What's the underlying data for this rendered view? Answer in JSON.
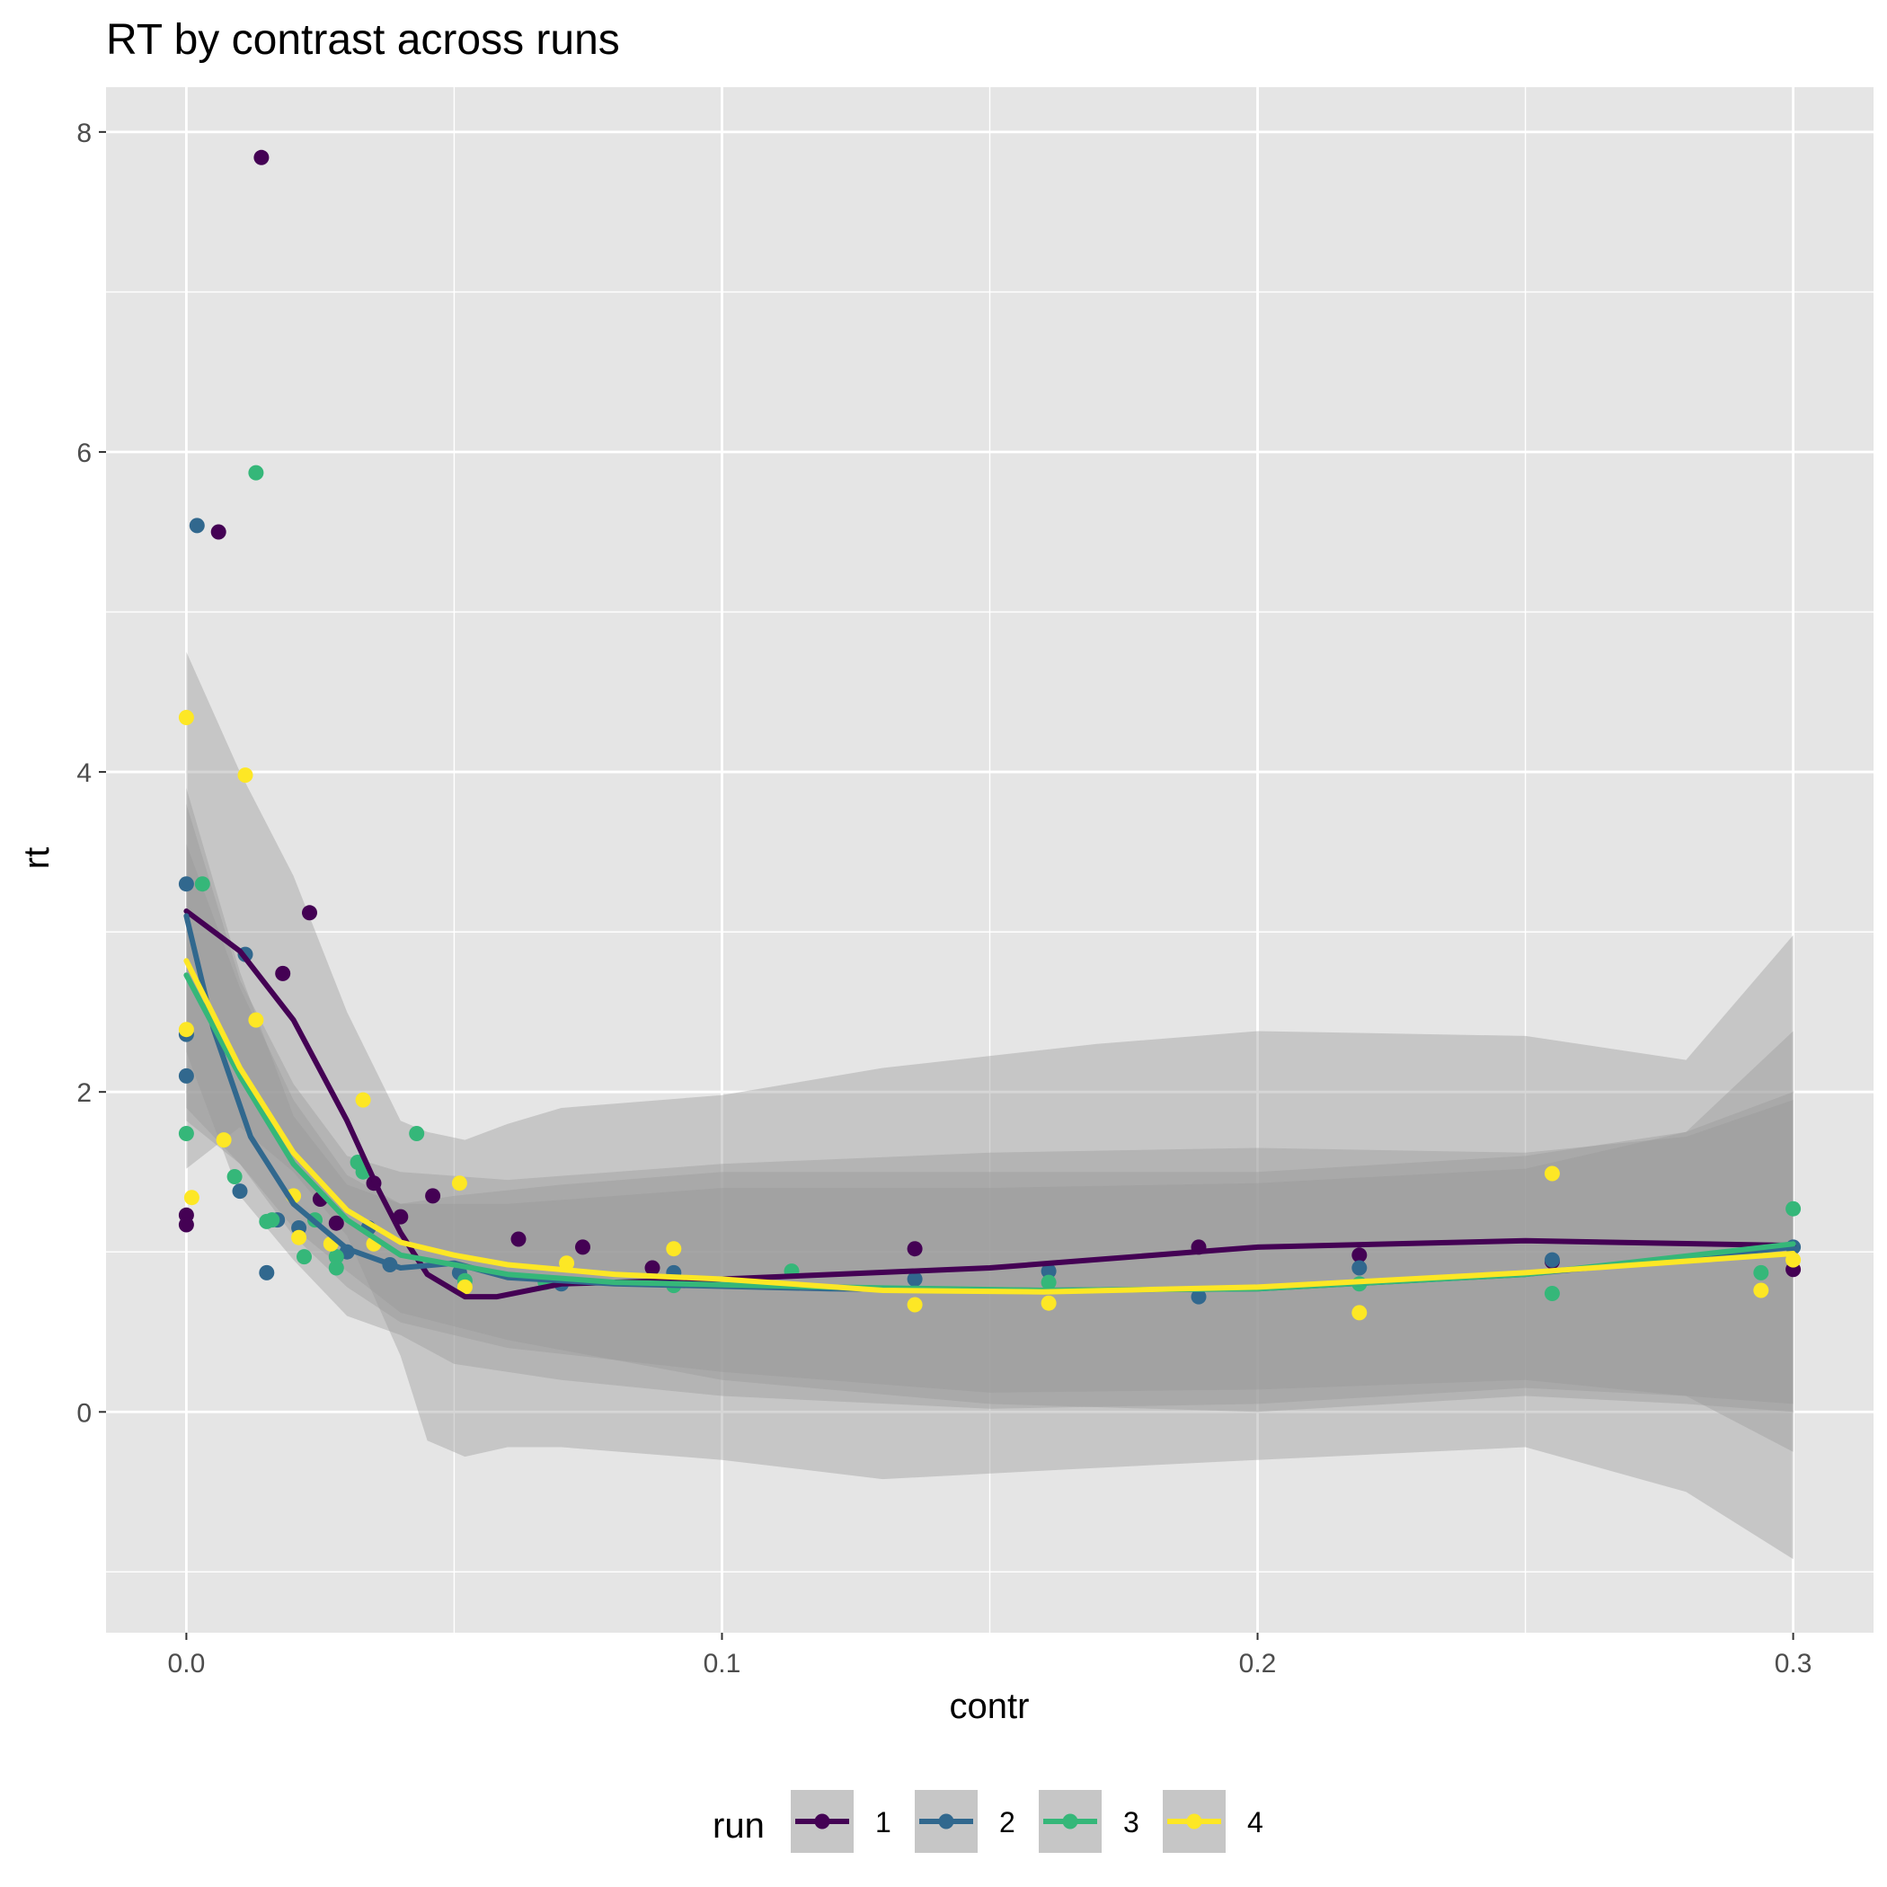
{
  "chart_data": {
    "type": "scatter",
    "title": "RT by contrast across runs",
    "xlabel": "contr",
    "ylabel": "rt",
    "xlim": [
      -0.015,
      0.315
    ],
    "ylim": [
      -1.38,
      8.28
    ],
    "x_ticks": [
      0.0,
      0.1,
      0.2,
      0.3
    ],
    "x_tick_labels": [
      "0.0",
      "0.1",
      "0.2",
      "0.3"
    ],
    "y_ticks": [
      0,
      2,
      4,
      6,
      8
    ],
    "y_tick_labels": [
      "0",
      "2",
      "4",
      "6",
      "8"
    ],
    "grid": true,
    "legend": {
      "title": "run",
      "position": "bottom"
    },
    "series": [
      {
        "name": "1",
        "color": "#440154",
        "points": [
          [
            0.0,
            1.23
          ],
          [
            0.0,
            1.17
          ],
          [
            0.006,
            5.5
          ],
          [
            0.014,
            7.84
          ],
          [
            0.018,
            2.74
          ],
          [
            0.023,
            3.12
          ],
          [
            0.025,
            1.33
          ],
          [
            0.028,
            1.18
          ],
          [
            0.035,
            1.43
          ],
          [
            0.04,
            1.22
          ],
          [
            0.046,
            1.35
          ],
          [
            0.062,
            1.08
          ],
          [
            0.074,
            1.03
          ],
          [
            0.087,
            0.9
          ],
          [
            0.136,
            1.02
          ],
          [
            0.189,
            1.03
          ],
          [
            0.219,
            0.98
          ],
          [
            0.255,
            0.94
          ],
          [
            0.3,
            0.89
          ]
        ],
        "smooth": [
          [
            0.0,
            3.13
          ],
          [
            0.01,
            2.88
          ],
          [
            0.02,
            2.45
          ],
          [
            0.03,
            1.82
          ],
          [
            0.036,
            1.38
          ],
          [
            0.04,
            1.12
          ],
          [
            0.045,
            0.86
          ],
          [
            0.052,
            0.72
          ],
          [
            0.058,
            0.72
          ],
          [
            0.07,
            0.8
          ],
          [
            0.1,
            0.83
          ],
          [
            0.15,
            0.9
          ],
          [
            0.2,
            1.03
          ],
          [
            0.25,
            1.07
          ],
          [
            0.3,
            1.04
          ]
        ],
        "band": [
          [
            0.0,
            4.75,
            1.52
          ],
          [
            0.01,
            4.0,
            1.78
          ],
          [
            0.02,
            3.35,
            1.5
          ],
          [
            0.03,
            2.5,
            1.1
          ],
          [
            0.04,
            1.82,
            0.35
          ],
          [
            0.045,
            1.75,
            -0.18
          ],
          [
            0.052,
            1.7,
            -0.28
          ],
          [
            0.06,
            1.8,
            -0.22
          ],
          [
            0.07,
            1.9,
            -0.22
          ],
          [
            0.1,
            1.98,
            -0.3
          ],
          [
            0.13,
            2.15,
            -0.42
          ],
          [
            0.17,
            2.3,
            -0.35
          ],
          [
            0.2,
            2.38,
            -0.3
          ],
          [
            0.25,
            2.35,
            -0.22
          ],
          [
            0.28,
            2.2,
            -0.5
          ],
          [
            0.3,
            2.98,
            -0.92
          ]
        ]
      },
      {
        "name": "2",
        "color": "#31688e",
        "points": [
          [
            0.0,
            3.3
          ],
          [
            0.0,
            2.36
          ],
          [
            0.0,
            2.1
          ],
          [
            0.002,
            5.54
          ],
          [
            0.01,
            1.38
          ],
          [
            0.011,
            2.86
          ],
          [
            0.015,
            0.87
          ],
          [
            0.017,
            1.2
          ],
          [
            0.021,
            1.15
          ],
          [
            0.03,
            1.0
          ],
          [
            0.034,
            1.15
          ],
          [
            0.038,
            0.92
          ],
          [
            0.051,
            0.87
          ],
          [
            0.07,
            0.8
          ],
          [
            0.091,
            0.87
          ],
          [
            0.136,
            0.83
          ],
          [
            0.161,
            0.88
          ],
          [
            0.189,
            0.72
          ],
          [
            0.219,
            0.9
          ],
          [
            0.255,
            0.95
          ],
          [
            0.3,
            1.03
          ]
        ],
        "smooth": [
          [
            0.0,
            3.1
          ],
          [
            0.005,
            2.4
          ],
          [
            0.012,
            1.72
          ],
          [
            0.02,
            1.3
          ],
          [
            0.03,
            1.02
          ],
          [
            0.04,
            0.9
          ],
          [
            0.05,
            0.93
          ],
          [
            0.06,
            0.84
          ],
          [
            0.08,
            0.8
          ],
          [
            0.12,
            0.77
          ],
          [
            0.16,
            0.76
          ],
          [
            0.2,
            0.77
          ],
          [
            0.25,
            0.86
          ],
          [
            0.3,
            1.03
          ]
        ],
        "band": [
          [
            0.0,
            3.9,
            2.25
          ],
          [
            0.01,
            2.75,
            1.35
          ],
          [
            0.02,
            1.85,
            0.95
          ],
          [
            0.03,
            1.42,
            0.6
          ],
          [
            0.04,
            1.3,
            0.48
          ],
          [
            0.05,
            1.35,
            0.3
          ],
          [
            0.07,
            1.42,
            0.2
          ],
          [
            0.1,
            1.5,
            0.1
          ],
          [
            0.15,
            1.5,
            0.02
          ],
          [
            0.2,
            1.5,
            0.05
          ],
          [
            0.25,
            1.6,
            0.15
          ],
          [
            0.28,
            1.75,
            0.1
          ],
          [
            0.3,
            2.0,
            0.05
          ]
        ]
      },
      {
        "name": "3",
        "color": "#35b779",
        "points": [
          [
            0.0,
            1.74
          ],
          [
            0.003,
            3.3
          ],
          [
            0.009,
            1.47
          ],
          [
            0.013,
            5.87
          ],
          [
            0.015,
            1.19
          ],
          [
            0.016,
            1.2
          ],
          [
            0.022,
            0.97
          ],
          [
            0.024,
            1.2
          ],
          [
            0.028,
            0.97
          ],
          [
            0.028,
            0.9
          ],
          [
            0.032,
            1.56
          ],
          [
            0.033,
            1.5
          ],
          [
            0.043,
            1.74
          ],
          [
            0.052,
            0.82
          ],
          [
            0.067,
            0.81
          ],
          [
            0.091,
            0.79
          ],
          [
            0.113,
            0.88
          ],
          [
            0.161,
            0.81
          ],
          [
            0.219,
            0.8
          ],
          [
            0.255,
            0.74
          ],
          [
            0.294,
            0.87
          ],
          [
            0.3,
            1.27
          ]
        ],
        "smooth": [
          [
            0.0,
            2.73
          ],
          [
            0.01,
            2.1
          ],
          [
            0.02,
            1.55
          ],
          [
            0.03,
            1.2
          ],
          [
            0.04,
            0.98
          ],
          [
            0.06,
            0.86
          ],
          [
            0.08,
            0.81
          ],
          [
            0.12,
            0.78
          ],
          [
            0.16,
            0.76
          ],
          [
            0.2,
            0.77
          ],
          [
            0.25,
            0.86
          ],
          [
            0.3,
            1.05
          ]
        ],
        "band": [
          [
            0.0,
            3.55,
            1.9
          ],
          [
            0.01,
            2.65,
            1.55
          ],
          [
            0.02,
            1.95,
            1.1
          ],
          [
            0.03,
            1.48,
            0.78
          ],
          [
            0.04,
            1.3,
            0.56
          ],
          [
            0.06,
            1.3,
            0.4
          ],
          [
            0.1,
            1.4,
            0.25
          ],
          [
            0.15,
            1.4,
            0.12
          ],
          [
            0.2,
            1.43,
            0.14
          ],
          [
            0.25,
            1.52,
            0.2
          ],
          [
            0.28,
            1.75,
            0.1
          ],
          [
            0.3,
            2.38,
            -0.25
          ]
        ]
      },
      {
        "name": "4",
        "color": "#fde725",
        "points": [
          [
            0.0,
            4.34
          ],
          [
            0.0,
            2.39
          ],
          [
            0.001,
            1.34
          ],
          [
            0.007,
            1.7
          ],
          [
            0.011,
            3.98
          ],
          [
            0.013,
            2.45
          ],
          [
            0.02,
            1.35
          ],
          [
            0.021,
            1.09
          ],
          [
            0.027,
            1.05
          ],
          [
            0.033,
            1.95
          ],
          [
            0.035,
            1.05
          ],
          [
            0.051,
            1.43
          ],
          [
            0.052,
            0.78
          ],
          [
            0.071,
            0.93
          ],
          [
            0.091,
            1.02
          ],
          [
            0.136,
            0.67
          ],
          [
            0.161,
            0.68
          ],
          [
            0.219,
            0.62
          ],
          [
            0.255,
            1.49
          ],
          [
            0.294,
            0.76
          ],
          [
            0.3,
            0.95
          ]
        ],
        "smooth": [
          [
            0.0,
            2.82
          ],
          [
            0.01,
            2.15
          ],
          [
            0.02,
            1.62
          ],
          [
            0.03,
            1.26
          ],
          [
            0.04,
            1.06
          ],
          [
            0.05,
            0.98
          ],
          [
            0.06,
            0.92
          ],
          [
            0.08,
            0.86
          ],
          [
            0.1,
            0.83
          ],
          [
            0.13,
            0.76
          ],
          [
            0.16,
            0.75
          ],
          [
            0.2,
            0.78
          ],
          [
            0.25,
            0.87
          ],
          [
            0.3,
            0.99
          ]
        ],
        "band": [
          [
            0.0,
            3.8,
            1.82
          ],
          [
            0.01,
            2.7,
            1.55
          ],
          [
            0.02,
            2.05,
            1.15
          ],
          [
            0.03,
            1.6,
            0.88
          ],
          [
            0.04,
            1.5,
            0.62
          ],
          [
            0.06,
            1.45,
            0.45
          ],
          [
            0.1,
            1.55,
            0.2
          ],
          [
            0.15,
            1.62,
            0.05
          ],
          [
            0.2,
            1.65,
            0.0
          ],
          [
            0.25,
            1.62,
            0.1
          ],
          [
            0.28,
            1.72,
            0.05
          ],
          [
            0.3,
            1.95,
            0.0
          ]
        ]
      }
    ]
  },
  "colors": {
    "panel_background": "#e5e5e5",
    "grid_major": "#ffffff",
    "band_fill": "#999999",
    "legend_key_background": "#c6c6c6"
  }
}
